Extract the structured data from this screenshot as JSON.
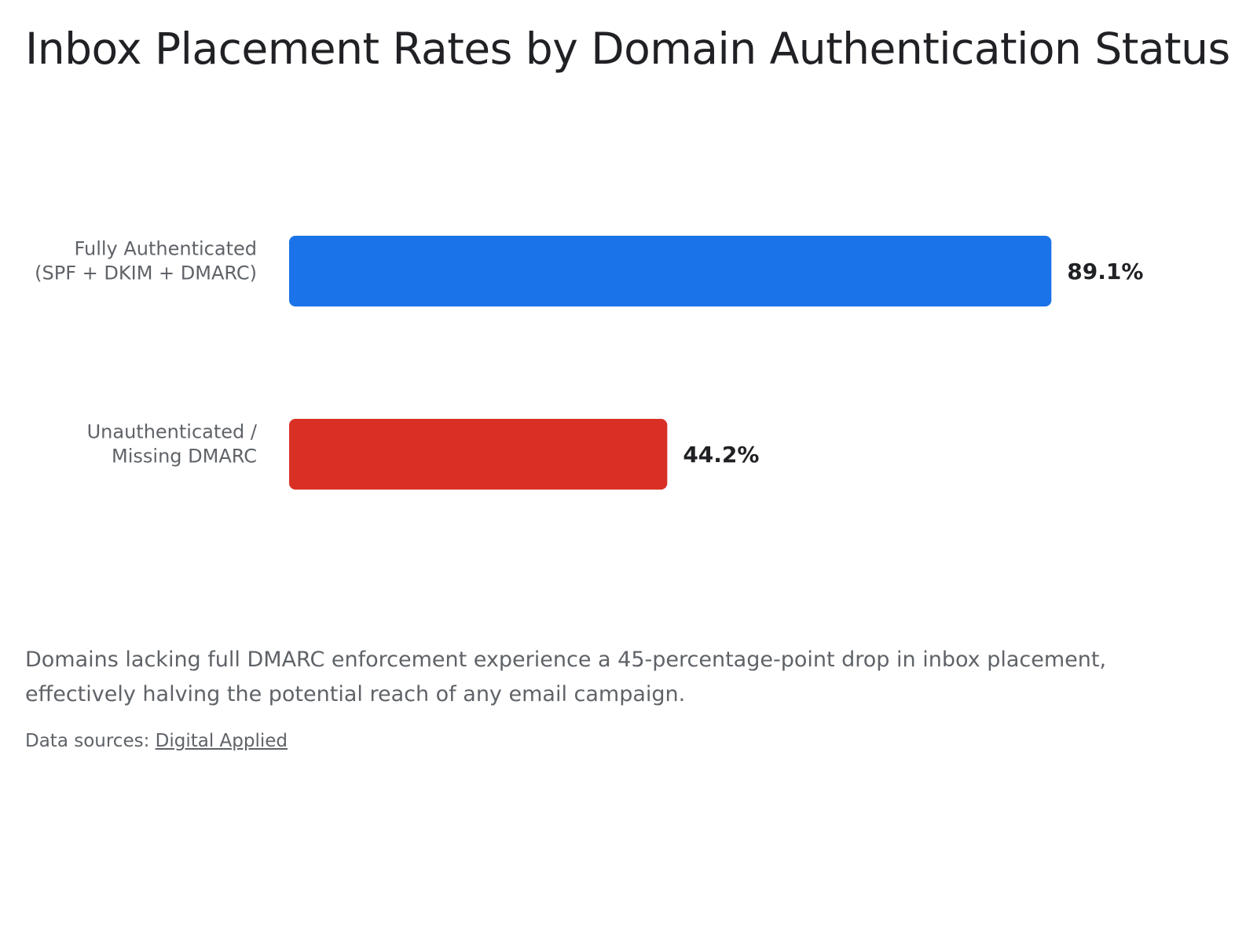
{
  "chart_data": {
    "type": "hbar",
    "title": "Inbox Placement Rates by Domain Authentication Status",
    "categories": [
      [
        "Fully Authenticated",
        "(SPF + DKIM + DMARC)"
      ],
      [
        "Unauthenticated /",
        "Missing DMARC"
      ]
    ],
    "values": [
      89.1,
      44.2
    ],
    "value_labels": [
      "89.1%",
      "44.2%"
    ],
    "colors": [
      "#1a73e8",
      "#d93025"
    ],
    "note": "Domains lacking full DMARC enforcement experience a 45-percentage-point drop in inbox placement, effectively halving the potential reach of any email campaign.",
    "source_label": "Data sources:",
    "source": "Digital Applied"
  }
}
